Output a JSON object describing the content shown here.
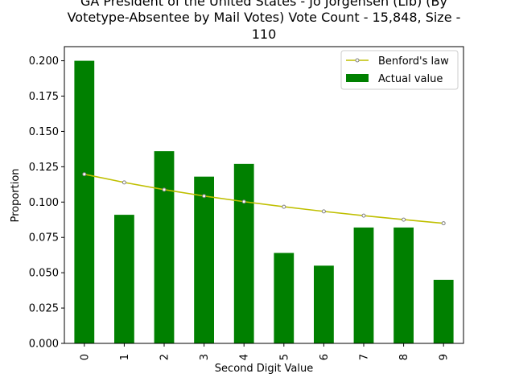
{
  "chart_data": {
    "type": "bar",
    "title_lines": [
      "GA President of the United States - Jo Jorgensen (Lib) (By",
      "Votetype-Absentee by Mail Votes) Vote Count - 15,848, Size -",
      "110"
    ],
    "xlabel": "Second Digit Value",
    "ylabel": "Proportion",
    "categories": [
      "0",
      "1",
      "2",
      "3",
      "4",
      "5",
      "6",
      "7",
      "8",
      "9"
    ],
    "ylim": [
      0,
      0.21
    ],
    "yticks": [
      0.0,
      0.025,
      0.05,
      0.075,
      0.1,
      0.125,
      0.15,
      0.175,
      0.2
    ],
    "ytick_labels": [
      "0.000",
      "0.025",
      "0.050",
      "0.075",
      "0.100",
      "0.125",
      "0.150",
      "0.175",
      "0.200"
    ],
    "grid": false,
    "legend_position": "top-right",
    "series": [
      {
        "name": "Benford's law",
        "kind": "line",
        "color": "#bfbf00",
        "marker_color": "#808080",
        "values": [
          0.1197,
          0.1139,
          0.1088,
          0.1043,
          0.1003,
          0.0967,
          0.0934,
          0.0904,
          0.0876,
          0.085
        ]
      },
      {
        "name": "Actual value",
        "kind": "bar",
        "color": "#008000",
        "values": [
          0.2,
          0.091,
          0.136,
          0.118,
          0.127,
          0.064,
          0.055,
          0.082,
          0.082,
          0.045
        ]
      }
    ]
  }
}
